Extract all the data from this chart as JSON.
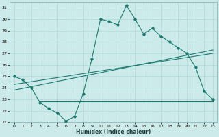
{
  "xlabel": "Humidex (Indice chaleur)",
  "background_color": "#cdeaea",
  "line_color": "#1a7a6e",
  "grid_color": "#a8d5d5",
  "xlim": [
    -0.5,
    23.5
  ],
  "ylim": [
    21,
    31.5
  ],
  "yticks": [
    21,
    22,
    23,
    24,
    25,
    26,
    27,
    28,
    29,
    30,
    31
  ],
  "xticks": [
    0,
    1,
    2,
    3,
    4,
    5,
    6,
    7,
    8,
    9,
    10,
    11,
    12,
    13,
    14,
    15,
    16,
    17,
    18,
    19,
    20,
    21,
    22,
    23
  ],
  "series1_x": [
    0,
    1,
    2,
    3,
    4,
    5,
    6,
    7,
    8,
    9,
    10,
    11,
    12,
    13,
    14,
    15,
    16,
    17,
    18,
    19,
    20,
    21,
    22,
    23
  ],
  "series1_y": [
    25.0,
    24.7,
    24.0,
    22.7,
    22.2,
    21.8,
    21.1,
    21.5,
    23.5,
    26.5,
    30.0,
    29.8,
    29.5,
    31.2,
    30.0,
    28.7,
    29.2,
    28.5,
    28.0,
    27.5,
    27.0,
    25.8,
    23.7,
    23.0
  ],
  "series2_x": [
    0,
    23
  ],
  "series2_y": [
    23.8,
    27.3
  ],
  "series3_x": [
    0,
    23
  ],
  "series3_y": [
    24.3,
    27.0
  ],
  "series4_x": [
    3,
    23
  ],
  "series4_y": [
    22.8,
    22.8
  ]
}
